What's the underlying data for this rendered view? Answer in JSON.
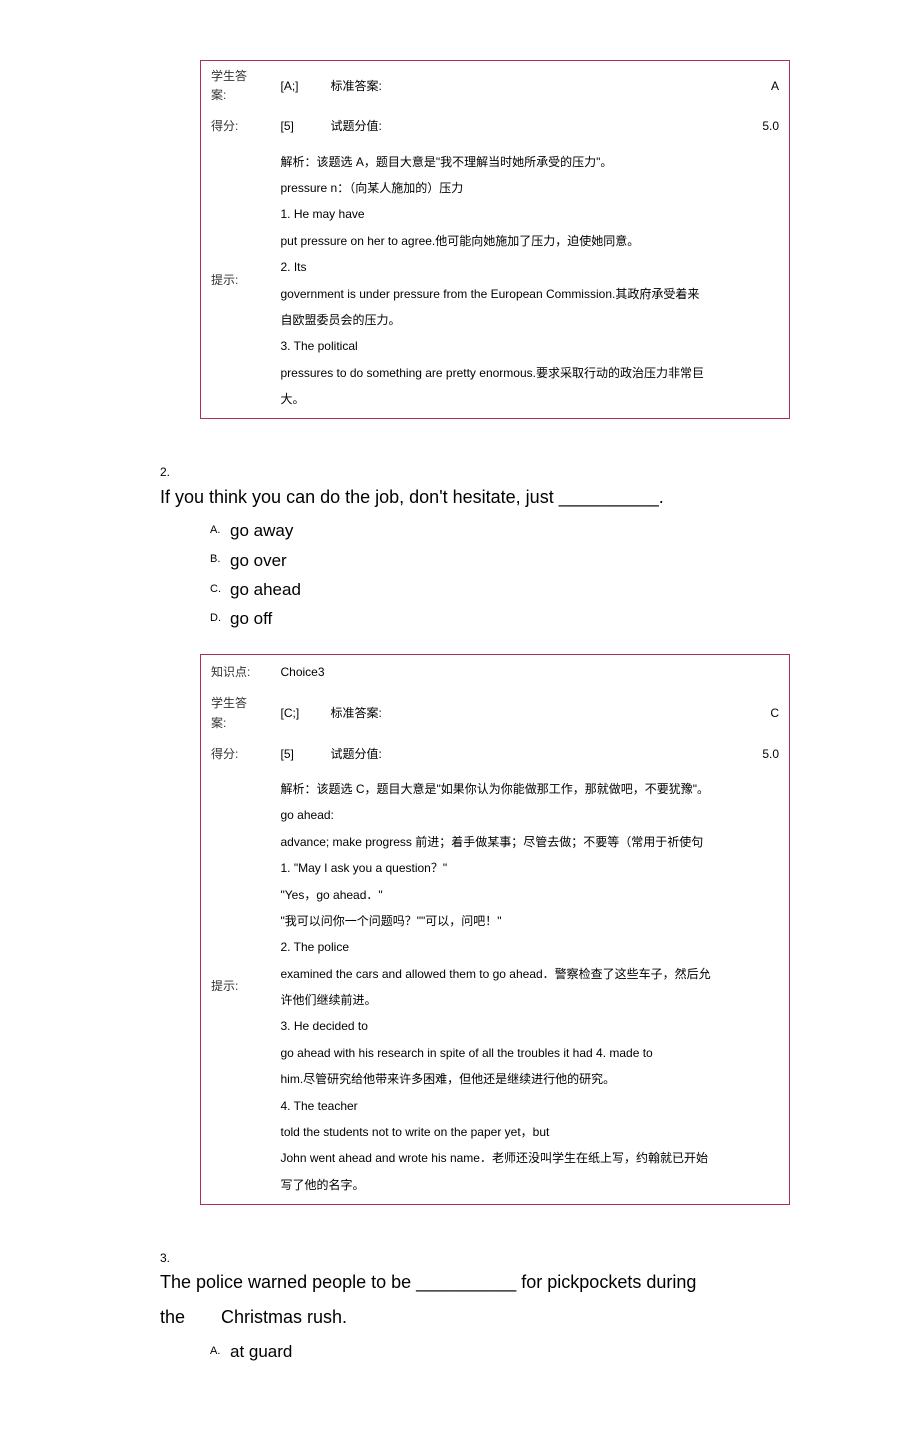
{
  "labels": {
    "student_answer": "学生答案:",
    "standard_answer": "标准答案:",
    "score": "得分:",
    "item_score": "试题分值:",
    "tips": "提示:",
    "knowledge_point": "知识点:"
  },
  "q1_table": {
    "student_answer_val": "[A;]",
    "standard_answer_val": "A",
    "score_val": "[5]",
    "item_score_val": "5.0",
    "tips_lines": [
      "解析：该题选 A，题目大意是\"我不理解当时她所承受的压力\"。",
      " pressure n：（向某人施加的）压力",
      " 1. He may have",
      " put pressure on her to agree.他可能向她施加了压力，迫使她同意。",
      " 2. Its",
      " government is under pressure from the European Commission.其政府承受着来",
      "自欧盟委员会的压力。",
      " 3. The political",
      " pressures to do something are pretty enormous.要求采取行动的政治压力非常巨",
      "大。"
    ]
  },
  "q2": {
    "number": "2.",
    "text": "If you think you can do the job, don't hesitate, just __________.",
    "options": [
      {
        "letter": "A.",
        "text": "go away"
      },
      {
        "letter": "B.",
        "text": "go over"
      },
      {
        "letter": "C.",
        "text": "go ahead"
      },
      {
        "letter": "D.",
        "text": "go off"
      }
    ]
  },
  "q2_table": {
    "knowledge_point_val": "Choice3",
    "student_answer_val": "[C;]",
    "standard_answer_val": "C",
    "score_val": "[5]",
    "item_score_val": "5.0",
    "tips_lines": [
      "解析：该题选 C，题目大意是\"如果你认为你能做那工作，那就做吧，不要犹豫\"。",
      " go ahead:",
      " advance; make progress  前进；着手做某事；尽管去做；不要等（常用于祈使句",
      " 1. \"May I ask you a question？\"",
      " \"Yes，go ahead．\"",
      " \"我可以问你一个问题吗？\"\"可以，问吧！\"",
      " 2. The police",
      " examined the cars and allowed them to go ahead．警察检查了这些车子，然后允",
      "许他们继续前进。",
      " 3. He decided to",
      " go ahead with his research in spite of all the troubles it had 4. made to",
      " him.尽管研究给他带来许多困难，但他还是继续进行他的研究。",
      " 4. The teacher",
      " told the students not to write on the paper yet，but",
      " John went ahead and wrote his name．老师还没叫学生在纸上写，约翰就已开始",
      "写了他的名字。"
    ]
  },
  "q3": {
    "number": "3.",
    "text_line1": "The police warned people to be __________ for pickpockets during",
    "text_line2": "the  Christmas rush.",
    "options": [
      {
        "letter": "A.",
        "text": "at guard"
      }
    ]
  },
  "style": {
    "table_border_color": "#a8305a",
    "body_bg": "#ffffff",
    "text_color": "#000000"
  }
}
